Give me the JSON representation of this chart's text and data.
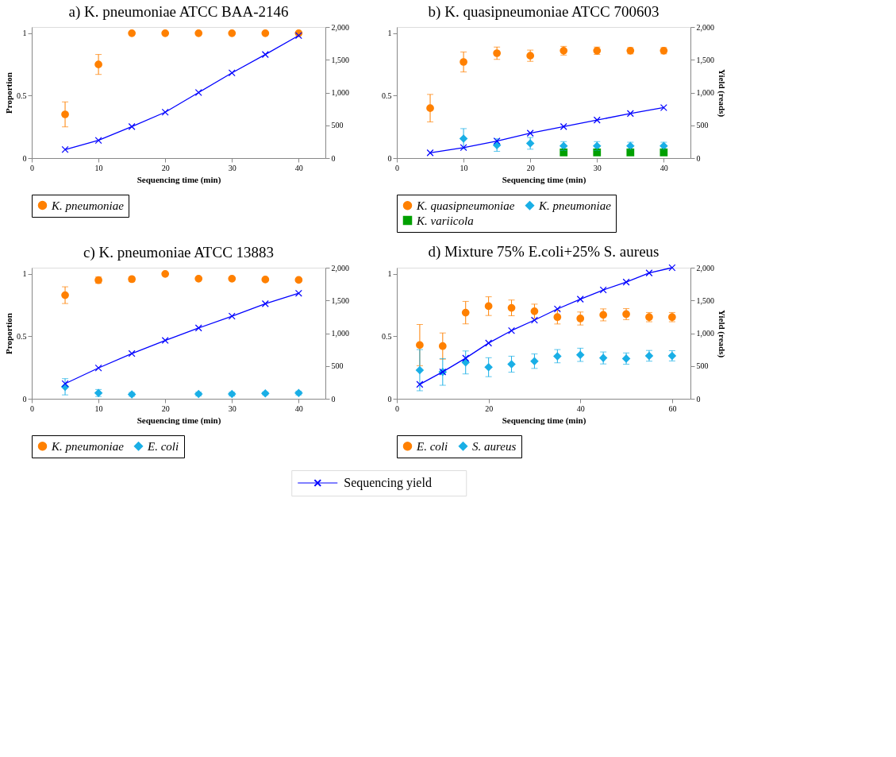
{
  "chart_data": [
    {
      "type": "scatter",
      "title": "a) K. pneumoniae ATCC BAA-2146",
      "xlabel": "Sequencing time (min)",
      "ylabel": "Proportion",
      "legend": "bottom",
      "grid": false,
      "x": [
        5,
        10,
        15,
        20,
        25,
        30,
        35,
        40
      ],
      "xlim": [
        0,
        44
      ],
      "xticks": [
        0,
        10,
        20,
        30,
        40
      ],
      "ylim": [
        0,
        1.05
      ],
      "yticks": [
        0,
        0.5,
        1
      ],
      "y2lim": [
        0,
        2000
      ],
      "y2ticks": [
        0,
        500,
        {
          "value": 1000,
          "label": "1,000"
        },
        {
          "value": 1500,
          "label": "1,500"
        },
        {
          "value": 2000,
          "label": "2,000"
        }
      ],
      "series": [
        {
          "name": "K. pneumoniae",
          "color": "#ff8000",
          "marker": "circle",
          "values": [
            0.35,
            0.75,
            1.0,
            1.0,
            1.0,
            1.0,
            1.0,
            1.0
          ],
          "errors": [
            0.1,
            0.08,
            null,
            null,
            null,
            null,
            null,
            null
          ]
        },
        {
          "name": "Sequencing yield",
          "type": "line",
          "axis": "y2",
          "color": "#0000ff",
          "marker": "cross",
          "values": [
            130,
            270,
            480,
            700,
            1000,
            1300,
            1580,
            1870
          ]
        }
      ]
    },
    {
      "type": "scatter",
      "title": "b) K. quasipneumoniae ATCC 700603",
      "xlabel": "Sequencing time (min)",
      "y2label": "Yield (reads)",
      "legend": "bottom",
      "grid": false,
      "x": [
        5,
        10,
        15,
        20,
        25,
        30,
        35,
        40
      ],
      "xlim": [
        0,
        44
      ],
      "xticks": [
        0,
        10,
        20,
        30,
        40
      ],
      "ylim": [
        0,
        1.05
      ],
      "yticks": [
        0,
        0.5,
        1
      ],
      "y2lim": [
        0,
        2000
      ],
      "y2ticks": [
        0,
        500,
        {
          "value": 1000,
          "label": "1,000"
        },
        {
          "value": 1500,
          "label": "1,500"
        },
        {
          "value": 2000,
          "label": "2,000"
        }
      ],
      "series": [
        {
          "name": "K. quasipneumoniae",
          "color": "#ff8000",
          "marker": "circle",
          "values": [
            0.4,
            0.77,
            0.84,
            0.82,
            0.86,
            0.86,
            0.86,
            0.86
          ],
          "errors": [
            0.11,
            0.08,
            0.05,
            0.045,
            0.035,
            0.03,
            0.025,
            0.025
          ]
        },
        {
          "name": "K. pneumoniae",
          "color": "#1aafe6",
          "marker": "diamond",
          "values": [
            null,
            0.156,
            0.104,
            0.118,
            0.097,
            0.097,
            0.097,
            0.097
          ],
          "errors": [
            null,
            0.08,
            0.05,
            0.047,
            0.035,
            0.035,
            0.03,
            0.03
          ]
        },
        {
          "name": "K. variicola",
          "color": "#00a000",
          "marker": "square",
          "values": [
            null,
            null,
            null,
            null,
            0.046,
            0.046,
            0.046,
            0.046
          ],
          "errors": [
            null,
            null,
            null,
            null,
            0.02,
            0.02,
            0.02,
            0.02
          ]
        },
        {
          "name": "Sequencing yield",
          "type": "line",
          "axis": "y2",
          "color": "#0000ff",
          "marker": "cross",
          "values": [
            80,
            160,
            260,
            380,
            480,
            580,
            680,
            770
          ]
        }
      ]
    },
    {
      "type": "scatter",
      "title": "c) K. pneumoniae ATCC 13883",
      "xlabel": "Sequencing time (min)",
      "ylabel": "Proportion",
      "legend": "bottom",
      "grid": false,
      "x": [
        5,
        10,
        15,
        20,
        25,
        30,
        35,
        40
      ],
      "xlim": [
        0,
        44
      ],
      "xticks": [
        0,
        10,
        20,
        30,
        40
      ],
      "ylim": [
        0,
        1.05
      ],
      "yticks": [
        0,
        0.5,
        1
      ],
      "y2lim": [
        0,
        2000
      ],
      "y2ticks": [
        0,
        500,
        {
          "value": 1000,
          "label": "1,000"
        },
        {
          "value": 1500,
          "label": "1,500"
        },
        {
          "value": 2000,
          "label": "2,000"
        }
      ],
      "series": [
        {
          "name": "K. pneumoniae",
          "color": "#ff8000",
          "marker": "circle",
          "values": [
            0.83,
            0.95,
            0.958,
            1.0,
            0.962,
            0.962,
            0.955,
            0.952
          ],
          "errors": [
            0.067,
            0.025,
            0.02,
            null,
            0.01,
            0.01,
            null,
            null
          ]
        },
        {
          "name": "E. coli",
          "color": "#1aafe6",
          "marker": "diamond",
          "values": [
            0.096,
            0.046,
            0.035,
            null,
            0.038,
            0.038,
            0.043,
            0.046
          ],
          "errors": [
            0.065,
            0.028,
            0.015,
            null,
            0.015,
            0.015,
            0.012,
            0.015
          ]
        },
        {
          "name": "Sequencing yield",
          "type": "line",
          "axis": "y2",
          "color": "#0000ff",
          "marker": "cross",
          "values": [
            230,
            470,
            690,
            890,
            1080,
            1260,
            1450,
            1610
          ]
        }
      ]
    },
    {
      "type": "scatter",
      "title": "d) Mixture 75% E.coli+25% S. aureus",
      "xlabel": "Sequencing time (min)",
      "y2label": "Yield (reads)",
      "legend": "bottom",
      "grid": false,
      "x": [
        5,
        10,
        15,
        20,
        25,
        30,
        35,
        40,
        45,
        50,
        55,
        60
      ],
      "xlim": [
        0,
        64
      ],
      "xticks": [
        0,
        20,
        40,
        60
      ],
      "ylim": [
        0,
        1.05
      ],
      "yticks": [
        0,
        0.5,
        1
      ],
      "y2lim": [
        0,
        2000
      ],
      "y2ticks": [
        0,
        500,
        {
          "value": 1000,
          "label": "1,000"
        },
        {
          "value": 1500,
          "label": "1,500"
        },
        {
          "value": 2000,
          "label": "2,000"
        }
      ],
      "series": [
        {
          "name": "E. coli",
          "color": "#ff8000",
          "marker": "circle",
          "values": [
            0.43,
            0.422,
            0.69,
            0.742,
            0.728,
            0.701,
            0.654,
            0.643,
            0.672,
            0.678,
            0.654,
            0.654
          ],
          "errors": [
            0.165,
            0.105,
            0.09,
            0.075,
            0.063,
            0.057,
            0.055,
            0.052,
            0.048,
            0.044,
            0.037,
            0.037
          ]
        },
        {
          "name": "S. aureus",
          "color": "#1aafe6",
          "marker": "diamond",
          "values": [
            0.229,
            0.215,
            0.291,
            0.253,
            0.277,
            0.301,
            0.341,
            0.352,
            0.327,
            0.322,
            0.344,
            0.344
          ],
          "errors": [
            0.165,
            0.107,
            0.092,
            0.076,
            0.064,
            0.058,
            0.053,
            0.053,
            0.048,
            0.045,
            0.043,
            0.041
          ]
        },
        {
          "name": "Sequencing yield",
          "type": "line",
          "axis": "y2",
          "color": "#0000ff",
          "marker": "cross",
          "values": [
            220,
            410,
            620,
            850,
            1040,
            1200,
            1370,
            1520,
            1660,
            1780,
            1920,
            2000
          ]
        }
      ]
    }
  ]
}
